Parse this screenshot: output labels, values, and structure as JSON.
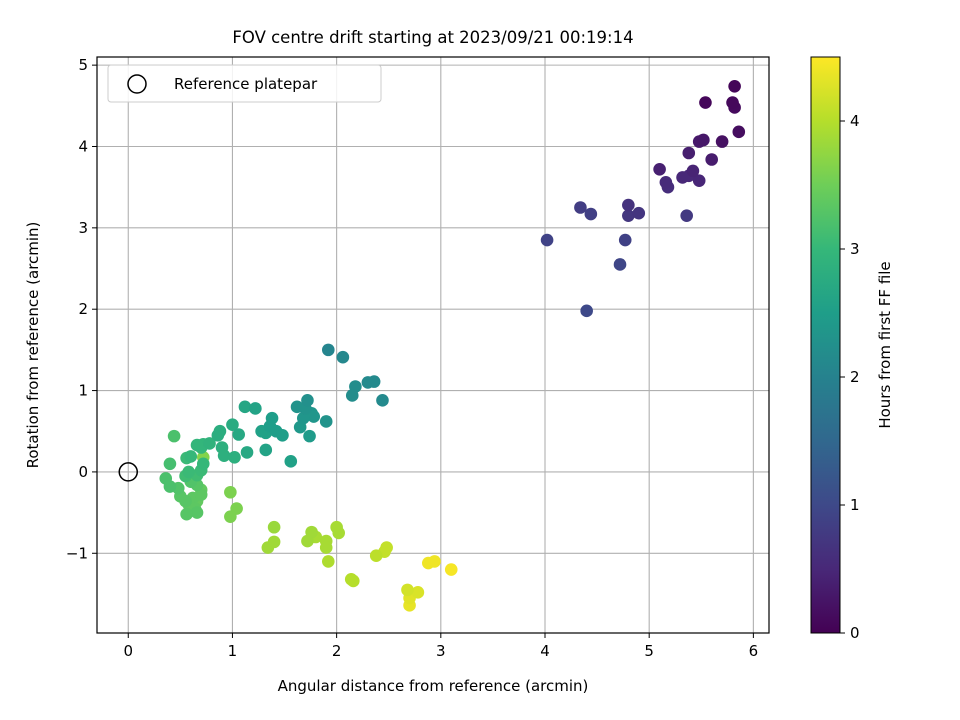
{
  "chart_data": {
    "type": "scatter",
    "title": "FOV centre drift starting at 2023/09/21 00:19:14",
    "xlabel": "Angular distance from reference (arcmin)",
    "ylabel": "Rotation from reference (arcmin)",
    "xlim": [
      -0.3,
      6.15
    ],
    "ylim": [
      -1.98,
      5.1
    ],
    "xticks": [
      0,
      1,
      2,
      3,
      4,
      5,
      6
    ],
    "xtick_labels": [
      "0",
      "1",
      "2",
      "3",
      "4",
      "5",
      "6"
    ],
    "yticks": [
      -1,
      0,
      1,
      2,
      3,
      4,
      5
    ],
    "ytick_labels": [
      "−1",
      "0",
      "1",
      "2",
      "3",
      "4",
      "5"
    ],
    "grid": true,
    "legend": {
      "position": "top-left",
      "entries": [
        {
          "label": "Reference platepar",
          "marker": "open-circle",
          "color": "#000000"
        }
      ]
    },
    "reference_point": {
      "x": 0,
      "y": 0
    },
    "colorbar": {
      "label": "Hours from first FF file",
      "min": 0,
      "max": 4.5,
      "ticks": [
        0,
        1,
        2,
        3,
        4
      ],
      "tick_labels": [
        "0",
        "1",
        "2",
        "3",
        "4"
      ],
      "colormap": "viridis",
      "colormap_stops": [
        "#440154",
        "#482878",
        "#3e4989",
        "#31688e",
        "#26828e",
        "#1f9e89",
        "#35b779",
        "#6ece58",
        "#b5de2b",
        "#fde725"
      ]
    },
    "points": [
      {
        "x": 5.82,
        "y": 4.74,
        "t": 0.05
      },
      {
        "x": 5.54,
        "y": 4.54,
        "t": 0.08
      },
      {
        "x": 5.8,
        "y": 4.54,
        "t": 0.1
      },
      {
        "x": 5.82,
        "y": 4.48,
        "t": 0.12
      },
      {
        "x": 5.86,
        "y": 4.18,
        "t": 0.15
      },
      {
        "x": 5.7,
        "y": 4.06,
        "t": 0.2
      },
      {
        "x": 5.52,
        "y": 4.08,
        "t": 0.28
      },
      {
        "x": 5.48,
        "y": 4.06,
        "t": 0.3
      },
      {
        "x": 5.6,
        "y": 3.84,
        "t": 0.35
      },
      {
        "x": 5.38,
        "y": 3.92,
        "t": 0.38
      },
      {
        "x": 5.1,
        "y": 3.72,
        "t": 0.4
      },
      {
        "x": 5.42,
        "y": 3.7,
        "t": 0.45
      },
      {
        "x": 5.32,
        "y": 3.62,
        "t": 0.5
      },
      {
        "x": 5.38,
        "y": 3.64,
        "t": 0.5
      },
      {
        "x": 5.48,
        "y": 3.58,
        "t": 0.48
      },
      {
        "x": 5.16,
        "y": 3.56,
        "t": 0.55
      },
      {
        "x": 5.18,
        "y": 3.5,
        "t": 0.58
      },
      {
        "x": 4.8,
        "y": 3.28,
        "t": 0.65
      },
      {
        "x": 4.9,
        "y": 3.18,
        "t": 0.7
      },
      {
        "x": 4.8,
        "y": 3.15,
        "t": 0.72
      },
      {
        "x": 5.36,
        "y": 3.15,
        "t": 0.75
      },
      {
        "x": 4.34,
        "y": 3.25,
        "t": 0.82
      },
      {
        "x": 4.44,
        "y": 3.17,
        "t": 0.85
      },
      {
        "x": 4.77,
        "y": 2.85,
        "t": 0.88
      },
      {
        "x": 4.02,
        "y": 2.85,
        "t": 0.9
      },
      {
        "x": 4.72,
        "y": 2.55,
        "t": 0.95
      },
      {
        "x": 4.4,
        "y": 1.98,
        "t": 1.0
      },
      {
        "x": 1.92,
        "y": 1.5,
        "t": 2.05
      },
      {
        "x": 2.06,
        "y": 1.41,
        "t": 2.1
      },
      {
        "x": 2.3,
        "y": 1.1,
        "t": 2.15
      },
      {
        "x": 2.36,
        "y": 1.11,
        "t": 2.15
      },
      {
        "x": 2.18,
        "y": 1.05,
        "t": 2.2
      },
      {
        "x": 2.15,
        "y": 0.94,
        "t": 2.2
      },
      {
        "x": 2.44,
        "y": 0.88,
        "t": 2.15
      },
      {
        "x": 1.72,
        "y": 0.88,
        "t": 2.25
      },
      {
        "x": 1.7,
        "y": 0.78,
        "t": 2.3
      },
      {
        "x": 1.62,
        "y": 0.8,
        "t": 2.3
      },
      {
        "x": 1.76,
        "y": 0.72,
        "t": 2.35
      },
      {
        "x": 1.78,
        "y": 0.68,
        "t": 2.35
      },
      {
        "x": 1.68,
        "y": 0.66,
        "t": 2.35
      },
      {
        "x": 1.9,
        "y": 0.62,
        "t": 2.3
      },
      {
        "x": 1.65,
        "y": 0.55,
        "t": 2.4
      },
      {
        "x": 1.74,
        "y": 0.44,
        "t": 2.45
      },
      {
        "x": 1.38,
        "y": 0.66,
        "t": 2.5
      },
      {
        "x": 1.36,
        "y": 0.56,
        "t": 2.5
      },
      {
        "x": 1.32,
        "y": 0.48,
        "t": 2.55
      },
      {
        "x": 1.42,
        "y": 0.5,
        "t": 2.5
      },
      {
        "x": 1.28,
        "y": 0.5,
        "t": 2.55
      },
      {
        "x": 1.48,
        "y": 0.45,
        "t": 2.5
      },
      {
        "x": 1.22,
        "y": 0.78,
        "t": 2.6
      },
      {
        "x": 1.12,
        "y": 0.8,
        "t": 2.65
      },
      {
        "x": 1.56,
        "y": 0.13,
        "t": 2.55
      },
      {
        "x": 1.32,
        "y": 0.27,
        "t": 2.6
      },
      {
        "x": 1.14,
        "y": 0.24,
        "t": 2.7
      },
      {
        "x": 1.06,
        "y": 0.46,
        "t": 2.7
      },
      {
        "x": 1.0,
        "y": 0.58,
        "t": 2.75
      },
      {
        "x": 0.88,
        "y": 0.5,
        "t": 2.8
      },
      {
        "x": 0.86,
        "y": 0.45,
        "t": 2.8
      },
      {
        "x": 0.9,
        "y": 0.3,
        "t": 2.85
      },
      {
        "x": 0.92,
        "y": 0.2,
        "t": 2.85
      },
      {
        "x": 1.02,
        "y": 0.18,
        "t": 2.85
      },
      {
        "x": 0.78,
        "y": 0.35,
        "t": 2.9
      },
      {
        "x": 0.72,
        "y": 0.34,
        "t": 2.95
      },
      {
        "x": 0.66,
        "y": 0.33,
        "t": 2.95
      },
      {
        "x": 0.7,
        "y": 0.3,
        "t": 3.0
      },
      {
        "x": 0.6,
        "y": 0.19,
        "t": 3.0
      },
      {
        "x": 0.56,
        "y": 0.17,
        "t": 3.05
      },
      {
        "x": 0.72,
        "y": 0.1,
        "t": 3.0
      },
      {
        "x": 0.7,
        "y": 0.02,
        "t": 3.05
      },
      {
        "x": 0.66,
        "y": -0.04,
        "t": 3.1
      },
      {
        "x": 0.58,
        "y": 0.0,
        "t": 3.05
      },
      {
        "x": 0.55,
        "y": -0.05,
        "t": 3.1
      },
      {
        "x": 0.44,
        "y": 0.44,
        "t": 3.2
      },
      {
        "x": 0.4,
        "y": 0.1,
        "t": 3.15
      },
      {
        "x": 0.36,
        "y": -0.08,
        "t": 3.2
      },
      {
        "x": 0.4,
        "y": -0.18,
        "t": 3.2
      },
      {
        "x": 0.48,
        "y": -0.2,
        "t": 3.25
      },
      {
        "x": 0.6,
        "y": -0.12,
        "t": 3.25
      },
      {
        "x": 0.66,
        "y": -0.16,
        "t": 3.3
      },
      {
        "x": 0.5,
        "y": -0.3,
        "t": 3.3
      },
      {
        "x": 0.55,
        "y": -0.36,
        "t": 3.3
      },
      {
        "x": 0.62,
        "y": -0.32,
        "t": 3.35
      },
      {
        "x": 0.7,
        "y": -0.28,
        "t": 3.35
      },
      {
        "x": 0.58,
        "y": -0.4,
        "t": 3.35
      },
      {
        "x": 0.64,
        "y": -0.45,
        "t": 3.35
      },
      {
        "x": 0.66,
        "y": -0.5,
        "t": 3.3
      },
      {
        "x": 0.56,
        "y": -0.52,
        "t": 3.3
      },
      {
        "x": 0.7,
        "y": -0.22,
        "t": 3.4
      },
      {
        "x": 0.66,
        "y": -0.36,
        "t": 3.4
      },
      {
        "x": 0.72,
        "y": 0.18,
        "t": 3.65
      },
      {
        "x": 0.98,
        "y": -0.25,
        "t": 3.6
      },
      {
        "x": 1.04,
        "y": -0.45,
        "t": 3.6
      },
      {
        "x": 0.98,
        "y": -0.55,
        "t": 3.6
      },
      {
        "x": 1.4,
        "y": -0.68,
        "t": 3.8
      },
      {
        "x": 1.4,
        "y": -0.86,
        "t": 3.85
      },
      {
        "x": 1.34,
        "y": -0.93,
        "t": 3.85
      },
      {
        "x": 1.76,
        "y": -0.74,
        "t": 3.85
      },
      {
        "x": 1.72,
        "y": -0.85,
        "t": 3.85
      },
      {
        "x": 1.8,
        "y": -0.8,
        "t": 3.9
      },
      {
        "x": 1.9,
        "y": -0.85,
        "t": 3.9
      },
      {
        "x": 1.9,
        "y": -0.93,
        "t": 3.9
      },
      {
        "x": 2.0,
        "y": -0.68,
        "t": 3.9
      },
      {
        "x": 2.02,
        "y": -0.75,
        "t": 3.9
      },
      {
        "x": 1.92,
        "y": -1.1,
        "t": 3.95
      },
      {
        "x": 2.14,
        "y": -1.32,
        "t": 4.0
      },
      {
        "x": 2.16,
        "y": -1.34,
        "t": 4.0
      },
      {
        "x": 2.38,
        "y": -1.03,
        "t": 4.05
      },
      {
        "x": 2.46,
        "y": -0.98,
        "t": 4.1
      },
      {
        "x": 2.48,
        "y": -0.93,
        "t": 4.1
      },
      {
        "x": 2.68,
        "y": -1.45,
        "t": 4.2
      },
      {
        "x": 2.78,
        "y": -1.48,
        "t": 4.25
      },
      {
        "x": 2.7,
        "y": -1.55,
        "t": 4.3
      },
      {
        "x": 2.7,
        "y": -1.64,
        "t": 4.35
      },
      {
        "x": 2.88,
        "y": -1.12,
        "t": 4.4
      },
      {
        "x": 2.94,
        "y": -1.1,
        "t": 4.4
      },
      {
        "x": 3.1,
        "y": -1.2,
        "t": 4.45
      }
    ]
  }
}
